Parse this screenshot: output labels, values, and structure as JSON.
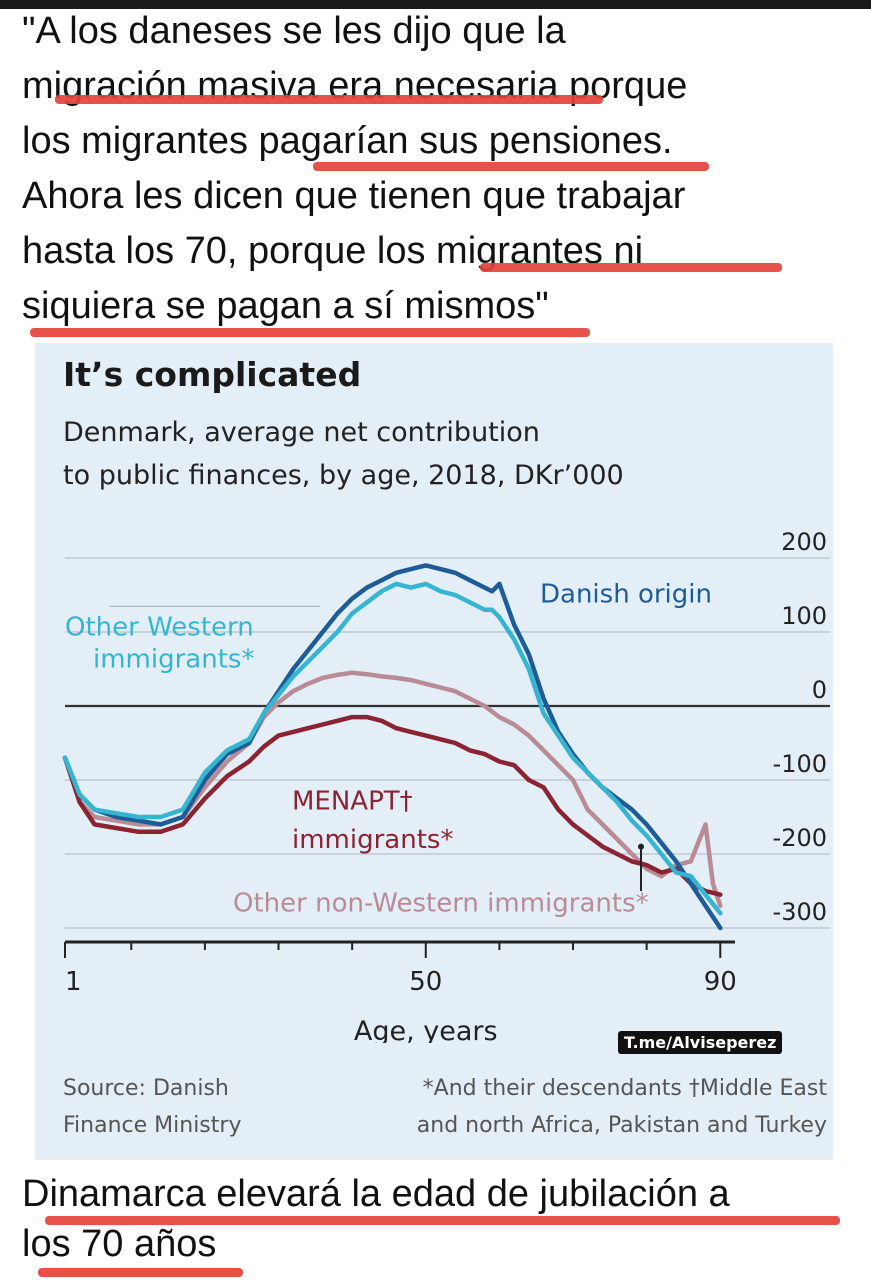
{
  "quote": {
    "lines": [
      "\"A los daneses se les dijo que la",
      "migración masiva era necesaria porque",
      "los migrantes pagarían sus pensiones.",
      "Ahora les dicen que tienen que trabajar",
      "hasta los 70, porque los migrantes ni",
      "siquiera se pagan a sí mismos\""
    ]
  },
  "chart_panel": {
    "title": "It’s complicated",
    "subtitle_line1": "Denmark, average net contribution",
    "subtitle_line2": "to public finances, by age, 2018, DKr’000",
    "watermark": "T.me/Alviseperez",
    "source_line1": "Source: Danish",
    "source_line2": "Finance Ministry",
    "footnote_line1": "*And their descendants  †Middle East",
    "footnote_line2": "and north Africa, Pakistan and Turkey"
  },
  "bottom_text": {
    "line1": "Dinamarca elevará la edad de jubilación a",
    "line2": "los 70 años"
  },
  "colors": {
    "highlight": "#e4423b",
    "panel_bg": "#e3eef6",
    "danish_origin": "#1d5c96",
    "other_western": "#36b5d1",
    "menapt": "#8b2332",
    "other_non_western": "#b98b95"
  },
  "chart_data": {
    "type": "line",
    "title": "It’s complicated",
    "subtitle": "Denmark, average net contribution to public finances, by age, 2018, DKr’000",
    "xlabel": "Age, years",
    "ylabel": "",
    "xlim": [
      1,
      92
    ],
    "ylim": [
      -300,
      200
    ],
    "x_ticks": [
      1,
      50,
      90
    ],
    "x_tick_labels": [
      "1",
      "50",
      "90"
    ],
    "y_ticks": [
      200,
      100,
      0,
      -100,
      -200,
      -300
    ],
    "y_tick_labels": [
      "200",
      "100",
      "0",
      "-100",
      "-200",
      "-300"
    ],
    "grid": true,
    "series": [
      {
        "name": "Danish origin",
        "key": "danish_origin",
        "x": [
          1,
          3,
          5,
          8,
          11,
          14,
          17,
          20,
          23,
          26,
          28,
          30,
          32,
          34,
          36,
          38,
          40,
          42,
          44,
          46,
          48,
          50,
          52,
          54,
          56,
          58,
          59,
          60,
          62,
          64,
          66,
          68,
          70,
          72,
          74,
          76,
          78,
          80,
          82,
          84,
          86,
          88,
          90
        ],
        "y": [
          -70,
          -120,
          -140,
          -150,
          -155,
          -160,
          -150,
          -100,
          -65,
          -50,
          -10,
          20,
          50,
          75,
          100,
          125,
          145,
          160,
          170,
          180,
          185,
          190,
          185,
          180,
          170,
          160,
          155,
          165,
          110,
          70,
          10,
          -35,
          -65,
          -90,
          -110,
          -125,
          -140,
          -160,
          -185,
          -210,
          -240,
          -270,
          -300
        ]
      },
      {
        "name": "Other Western immigrants*",
        "key": "other_western",
        "x": [
          1,
          3,
          5,
          8,
          11,
          14,
          17,
          20,
          23,
          26,
          28,
          30,
          32,
          34,
          36,
          38,
          40,
          42,
          44,
          46,
          48,
          50,
          52,
          54,
          56,
          58,
          59,
          60,
          62,
          64,
          66,
          68,
          70,
          72,
          74,
          76,
          78,
          80,
          82,
          84,
          86,
          88,
          90
        ],
        "y": [
          -70,
          -120,
          -140,
          -145,
          -150,
          -150,
          -140,
          -90,
          -60,
          -45,
          -10,
          15,
          40,
          60,
          80,
          100,
          125,
          140,
          155,
          165,
          160,
          165,
          155,
          150,
          140,
          130,
          130,
          120,
          90,
          50,
          -10,
          -40,
          -70,
          -90,
          -110,
          -130,
          -155,
          -175,
          -200,
          -225,
          -230,
          -255,
          -280
        ]
      },
      {
        "name": "Other non-Western immigrants*",
        "key": "other_non_western",
        "x": [
          1,
          3,
          5,
          8,
          11,
          14,
          17,
          20,
          23,
          26,
          28,
          30,
          32,
          34,
          36,
          38,
          40,
          42,
          44,
          46,
          48,
          50,
          52,
          54,
          56,
          58,
          60,
          62,
          64,
          66,
          68,
          70,
          72,
          74,
          76,
          78,
          80,
          82,
          84,
          86,
          88,
          89,
          90
        ],
        "y": [
          -70,
          -130,
          -150,
          -155,
          -160,
          -160,
          -150,
          -110,
          -75,
          -50,
          -15,
          5,
          20,
          30,
          38,
          42,
          45,
          43,
          40,
          38,
          35,
          30,
          25,
          20,
          10,
          0,
          -15,
          -25,
          -40,
          -60,
          -80,
          -100,
          -140,
          -160,
          -180,
          -200,
          -220,
          -230,
          -215,
          -210,
          -160,
          -240,
          -270
        ]
      },
      {
        "name": "MENAPT† immigrants*",
        "key": "menapt",
        "x": [
          1,
          3,
          5,
          8,
          11,
          14,
          17,
          20,
          23,
          26,
          28,
          30,
          32,
          34,
          36,
          38,
          40,
          42,
          44,
          46,
          48,
          50,
          52,
          54,
          56,
          58,
          60,
          62,
          64,
          66,
          68,
          70,
          72,
          74,
          76,
          78,
          80,
          82,
          84,
          86,
          88,
          90
        ],
        "y": [
          -70,
          -130,
          -160,
          -165,
          -170,
          -170,
          -160,
          -125,
          -95,
          -75,
          -55,
          -40,
          -35,
          -30,
          -25,
          -20,
          -15,
          -15,
          -20,
          -30,
          -35,
          -40,
          -45,
          -50,
          -60,
          -65,
          -75,
          -80,
          -100,
          -110,
          -140,
          -160,
          -175,
          -190,
          -200,
          -210,
          -215,
          -225,
          -220,
          -240,
          -250,
          -255
        ]
      }
    ],
    "labels": [
      {
        "text": "Danish origin",
        "series": "danish_origin"
      },
      {
        "text": "Other Western",
        "series": "other_western"
      },
      {
        "text": "immigrants*",
        "series": "other_western"
      },
      {
        "text": "MENAPT†",
        "series": "menapt"
      },
      {
        "text": "immigrants*",
        "series": "menapt"
      },
      {
        "text": "Other non-Western immigrants*",
        "series": "other_non_western"
      }
    ]
  }
}
